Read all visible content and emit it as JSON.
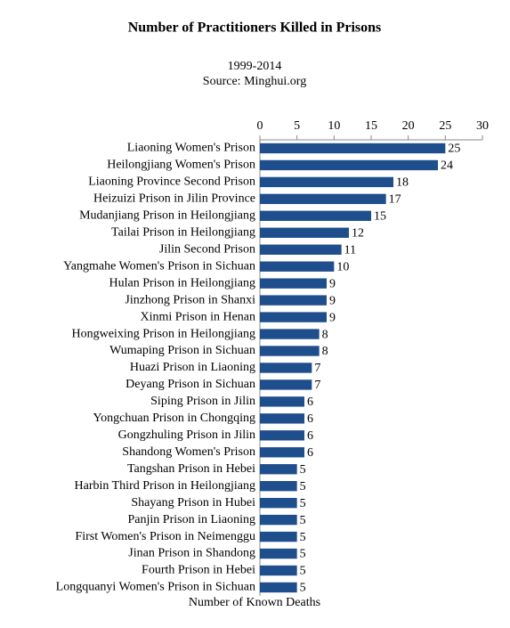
{
  "chart_data": {
    "type": "barh",
    "title": "Number of Practitioners Killed in Prisons",
    "subtitle": [
      "1999-2014",
      "Source: Minghui.org"
    ],
    "x_label": "Number of Known Deaths",
    "categories": [
      "Liaoning Women's Prison",
      "Heilongjiang Women's Prison",
      "Liaoning Province Second Prison",
      "Heizuizi Prison in Jilin Province",
      "Mudanjiang Prison in Heilongjiang",
      "Tailai Prison in Heilongjiang",
      "Jilin Second Prison",
      "Yangmahe Women's Prison in Sichuan",
      "Hulan Prison in Heilongjiang",
      "Jinzhong Prison in Shanxi",
      "Xinmi Prison in Henan",
      "Hongweixing Prison in Heilongjiang",
      "Wumaping Prison in Sichuan",
      "Huazi Prison in Liaoning",
      "Deyang Prison in Sichuan",
      "Siping Prison in Jilin",
      "Yongchuan Prison in Chongqing",
      "Gongzhuling Prison in Jilin",
      "Shandong Women's Prison",
      "Tangshan Prison in Hebei",
      "Harbin Third Prison in Heilongjiang",
      "Shayang Prison in Hubei",
      "Panjin Prison in Liaoning",
      "First Women's Prison in Neimenggu",
      "Jinan Prison in Shandong",
      "Fourth Prison in Hebei",
      "Longquanyi Women's Prison in Sichuan"
    ],
    "values": [
      25,
      24,
      18,
      17,
      15,
      12,
      11,
      10,
      9,
      9,
      9,
      8,
      8,
      7,
      7,
      6,
      6,
      6,
      6,
      5,
      5,
      5,
      5,
      5,
      5,
      5,
      5
    ],
    "color": "#1f4e8c",
    "xlim": [
      0,
      30
    ],
    "xticks": [
      0,
      5,
      10,
      15,
      20,
      25,
      30
    ]
  }
}
